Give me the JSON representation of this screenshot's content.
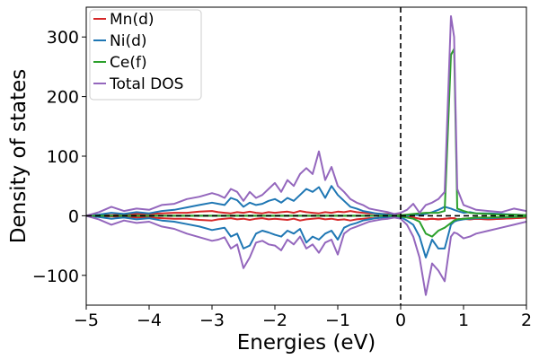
{
  "chart_data": {
    "type": "line",
    "title": "",
    "xlabel": "Energies (eV)",
    "ylabel": "Density of states",
    "xlim": [
      -5,
      2
    ],
    "ylim": [
      -150,
      350
    ],
    "xticks": [
      -5,
      -4,
      -3,
      -2,
      -1,
      0,
      1,
      2
    ],
    "xtick_labels": [
      "−5",
      "−4",
      "−3",
      "−2",
      "−1",
      "0",
      "1",
      "2"
    ],
    "yticks": [
      -100,
      0,
      100,
      200,
      300
    ],
    "ytick_labels": [
      "−100",
      "0",
      "100",
      "200",
      "300"
    ],
    "legend_position": "top-left",
    "fermi_level": 0,
    "zero_line": 0,
    "x": [
      -5.0,
      -4.8,
      -4.6,
      -4.4,
      -4.2,
      -4.0,
      -3.8,
      -3.6,
      -3.4,
      -3.2,
      -3.0,
      -2.9,
      -2.8,
      -2.7,
      -2.6,
      -2.5,
      -2.4,
      -2.3,
      -2.2,
      -2.1,
      -2.0,
      -1.9,
      -1.8,
      -1.7,
      -1.6,
      -1.5,
      -1.4,
      -1.3,
      -1.2,
      -1.1,
      -1.0,
      -0.9,
      -0.8,
      -0.7,
      -0.6,
      -0.5,
      -0.4,
      -0.3,
      -0.2,
      -0.1,
      0.0,
      0.1,
      0.2,
      0.3,
      0.4,
      0.5,
      0.6,
      0.7,
      0.8,
      0.85,
      0.9,
      1.0,
      1.1,
      1.2,
      1.4,
      1.6,
      1.8,
      2.0
    ],
    "series": [
      {
        "name": "Mn(d)",
        "color": "#d62728",
        "up": [
          0,
          1,
          1,
          2,
          3,
          3,
          4,
          5,
          5,
          7,
          8,
          6,
          5,
          4,
          6,
          5,
          7,
          5,
          4,
          6,
          5,
          6,
          7,
          5,
          8,
          6,
          5,
          4,
          6,
          5,
          7,
          6,
          8,
          6,
          5,
          4,
          4,
          3,
          3,
          2,
          1,
          -2,
          -3,
          -5,
          -6,
          -5,
          -6,
          -5,
          -4,
          -4,
          -6,
          -5,
          -6,
          -5,
          -6,
          -5,
          -4,
          -3
        ],
        "down": [
          0,
          -1,
          -1,
          -2,
          -3,
          -3,
          -4,
          -5,
          -5,
          -7,
          -8,
          -6,
          -5,
          -4,
          -6,
          -5,
          -7,
          -5,
          -4,
          -6,
          -5,
          -6,
          -7,
          -5,
          -8,
          -6,
          -5,
          -4,
          -6,
          -5,
          -7,
          -6,
          -8,
          -6,
          -5,
          -4,
          -4,
          -3,
          -3,
          -2,
          -1,
          -2,
          -3,
          -5,
          -6,
          -5,
          -6,
          -5,
          -4,
          -4,
          -6,
          -5,
          -6,
          -5,
          -6,
          -5,
          -4,
          -3
        ]
      },
      {
        "name": "Ni(d)",
        "color": "#1f77b4",
        "up": [
          0,
          2,
          5,
          3,
          6,
          4,
          8,
          10,
          14,
          18,
          22,
          20,
          18,
          30,
          26,
          15,
          22,
          18,
          20,
          25,
          28,
          22,
          30,
          25,
          35,
          45,
          40,
          48,
          30,
          50,
          35,
          25,
          15,
          12,
          8,
          6,
          4,
          3,
          2,
          1,
          0,
          0,
          2,
          1,
          3,
          6,
          10,
          15,
          12,
          10,
          8,
          5,
          6,
          4,
          4,
          3,
          2,
          1
        ],
        "down": [
          0,
          -2,
          -5,
          -3,
          -6,
          -4,
          -8,
          -10,
          -14,
          -18,
          -24,
          -22,
          -20,
          -35,
          -30,
          -55,
          -50,
          -30,
          -25,
          -28,
          -32,
          -35,
          -25,
          -30,
          -22,
          -45,
          -35,
          -40,
          -30,
          -25,
          -40,
          -20,
          -15,
          -12,
          -8,
          -6,
          -4,
          -3,
          -2,
          -1,
          -2,
          -8,
          -15,
          -35,
          -70,
          -40,
          -55,
          -55,
          -15,
          -10,
          -8,
          -6,
          -5,
          -4,
          -4,
          -3,
          -2,
          -1
        ]
      },
      {
        "name": "Ce(f)",
        "color": "#2ca02c",
        "up": [
          0,
          0,
          0,
          0,
          0,
          0,
          0,
          0,
          0,
          0,
          0,
          0,
          0,
          0,
          0,
          0,
          0,
          0,
          0,
          0,
          0,
          0,
          0,
          0,
          0,
          0,
          0,
          0,
          0,
          0,
          0,
          0,
          0,
          0,
          0,
          0,
          0,
          0,
          0,
          0,
          1,
          2,
          3,
          4,
          5,
          5,
          5,
          8,
          270,
          280,
          12,
          8,
          5,
          4,
          3,
          2,
          2,
          1
        ],
        "down": [
          0,
          0,
          0,
          0,
          0,
          0,
          0,
          0,
          0,
          0,
          0,
          0,
          0,
          0,
          0,
          0,
          0,
          0,
          0,
          0,
          0,
          0,
          0,
          0,
          0,
          0,
          0,
          0,
          0,
          0,
          0,
          0,
          0,
          0,
          0,
          0,
          0,
          0,
          0,
          0,
          -1,
          -3,
          -5,
          -10,
          -30,
          -35,
          -25,
          -20,
          -12,
          -8,
          -6,
          -5,
          -4,
          -3,
          -3,
          -2,
          -2,
          -1
        ]
      },
      {
        "name": "Total DOS",
        "color": "#9467bd",
        "up": [
          0,
          6,
          15,
          8,
          12,
          10,
          18,
          20,
          28,
          32,
          38,
          35,
          30,
          45,
          40,
          25,
          40,
          30,
          35,
          45,
          55,
          40,
          60,
          50,
          70,
          80,
          70,
          108,
          60,
          82,
          50,
          40,
          28,
          22,
          18,
          12,
          10,
          8,
          6,
          3,
          5,
          10,
          20,
          5,
          18,
          22,
          28,
          40,
          335,
          300,
          45,
          18,
          14,
          10,
          8,
          6,
          12,
          8
        ],
        "down": [
          0,
          -6,
          -15,
          -8,
          -12,
          -10,
          -18,
          -22,
          -30,
          -36,
          -42,
          -40,
          -36,
          -55,
          -48,
          -88,
          -70,
          -45,
          -42,
          -48,
          -50,
          -58,
          -40,
          -48,
          -35,
          -55,
          -48,
          -62,
          -45,
          -40,
          -65,
          -30,
          -22,
          -18,
          -14,
          -10,
          -8,
          -6,
          -5,
          -3,
          -5,
          -15,
          -35,
          -70,
          -133,
          -80,
          -92,
          -110,
          -35,
          -28,
          -30,
          -38,
          -35,
          -30,
          -25,
          -20,
          -15,
          -10
        ]
      }
    ]
  }
}
